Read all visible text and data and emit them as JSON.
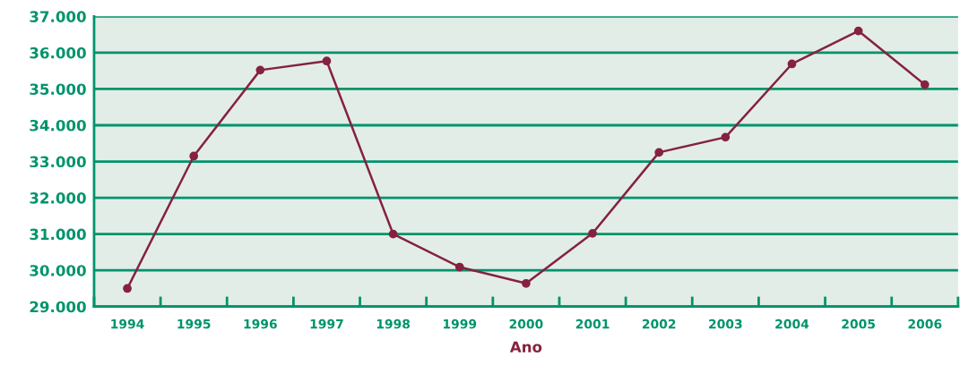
{
  "chart_data": {
    "type": "line",
    "xlabel": "Ano",
    "categories": [
      "1994",
      "1995",
      "1996",
      "1997",
      "1998",
      "1999",
      "2000",
      "2001",
      "2002",
      "2003",
      "2004",
      "2005",
      "2006"
    ],
    "series": [
      {
        "color": "#85223f",
        "values": [
          29500,
          33150,
          35520,
          35770,
          31000,
          30090,
          29640,
          31020,
          33250,
          33670,
          35690,
          36600,
          35120
        ]
      }
    ],
    "ylim": [
      29000,
      37000
    ],
    "yticks": [
      {
        "value": 29000,
        "label": "29.000"
      },
      {
        "value": 30000,
        "label": "30.000"
      },
      {
        "value": 31000,
        "label": "31.000"
      },
      {
        "value": 32000,
        "label": "32.000"
      },
      {
        "value": 33000,
        "label": "33.000"
      },
      {
        "value": 34000,
        "label": "34.000"
      },
      {
        "value": 35000,
        "label": "35.000"
      },
      {
        "value": 36000,
        "label": "36.000"
      },
      {
        "value": 37000,
        "label": "37.000"
      }
    ],
    "grid": "y",
    "marker": "circle",
    "line_style": "solid",
    "legend": false
  }
}
